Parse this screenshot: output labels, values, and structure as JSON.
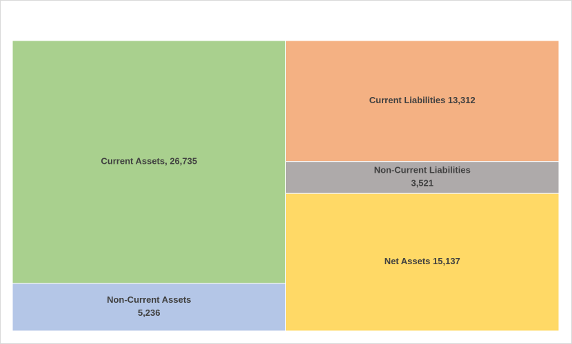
{
  "chart_data": {
    "type": "treemap",
    "title": "",
    "groups": [
      {
        "name": "",
        "items": [
          {
            "name": "Current Assets",
            "value": 26735,
            "label_lines": [
              "Current Assets, 26,735"
            ],
            "color": "#a9d08e"
          },
          {
            "name": "Non-Current Assets",
            "value": 5236,
            "label_lines": [
              "Non-Current Assets",
              "5,236"
            ],
            "color": "#b4c6e7"
          }
        ]
      },
      {
        "name": "",
        "items": [
          {
            "name": "Current Liabilities",
            "value": 13312,
            "label_lines": [
              "Current Liabilities 13,312"
            ],
            "color": "#f4b183"
          },
          {
            "name": "Non-Current Liabilities",
            "value": 3521,
            "label_lines": [
              "Non-Current Liabilities",
              "3,521"
            ],
            "color": "#aeaaaa"
          },
          {
            "name": "Net Assets",
            "value": 15137,
            "label_lines": [
              "Net Assets 15,137"
            ],
            "color": "#ffd966"
          }
        ]
      }
    ]
  }
}
